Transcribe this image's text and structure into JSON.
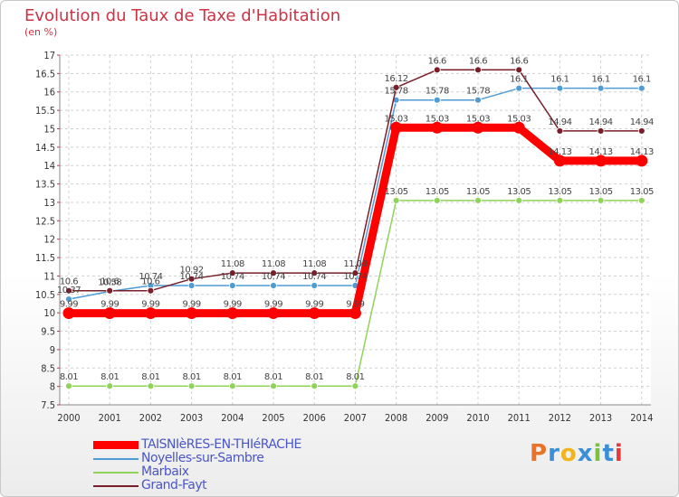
{
  "title": "Evolution du Taux de Taxe d'Habitation",
  "unit": "(en %)",
  "brand": {
    "text": "Proxiti",
    "colors": [
      "#e8742a",
      "#3a8fd8",
      "#f2b31c",
      "#3a8fd8",
      "#7ac143",
      "#3a8fd8",
      "#e23c3c"
    ]
  },
  "chart_data": {
    "type": "line",
    "title": "Evolution du Taux de Taxe d'Habitation",
    "ylabel": "(en %)",
    "xlabel": "",
    "ylim": [
      7.5,
      17
    ],
    "y_ticks": [
      "7.5",
      "8",
      "8.5",
      "9",
      "9.5",
      "10",
      "10.5",
      "11",
      "11.5",
      "12",
      "12.5",
      "13",
      "13.5",
      "14",
      "14.5",
      "15",
      "15.5",
      "16",
      "16.5",
      "17"
    ],
    "categories": [
      "2000",
      "2001",
      "2002",
      "2003",
      "2004",
      "2005",
      "2006",
      "2007",
      "2008",
      "2009",
      "2010",
      "2011",
      "2012",
      "2013",
      "2014"
    ],
    "legend_position": "bottom-left",
    "series": [
      {
        "name": "TAISNIèRES-EN-THIéRACHE",
        "color": "#ff0000",
        "bold": true,
        "values": [
          9.99,
          9.99,
          9.99,
          9.99,
          9.99,
          9.99,
          9.99,
          9.99,
          15.03,
          15.03,
          15.03,
          15.03,
          14.13,
          14.13,
          14.13
        ],
        "labels": [
          "9.99",
          "9.99",
          "9.99",
          "9.99",
          "9.99",
          "9.99",
          "9.99",
          "9.99",
          "15.03",
          "15.03",
          "15.03",
          "15.03",
          "14.13",
          "14.13",
          "14.13"
        ]
      },
      {
        "name": "Noyelles-sur-Sambre",
        "color": "#4f9bd4",
        "values": [
          10.37,
          10.58,
          10.74,
          10.74,
          10.74,
          10.74,
          10.74,
          10.74,
          15.78,
          15.78,
          15.78,
          16.1,
          16.1,
          16.1,
          16.1
        ],
        "labels": [
          "10.37",
          "10.58",
          "10.74",
          "10.74",
          "10.74",
          "10.74",
          "10.74",
          "10.74",
          "15.78",
          "15.78",
          "15.78",
          "16.1",
          "16.1",
          "16.1",
          "16.1"
        ]
      },
      {
        "name": "Marbaix",
        "color": "#8fd35a",
        "values": [
          8.01,
          8.01,
          8.01,
          8.01,
          8.01,
          8.01,
          8.01,
          8.01,
          13.05,
          13.05,
          13.05,
          13.05,
          13.05,
          13.05,
          13.05
        ],
        "labels": [
          "8.01",
          "8.01",
          "8.01",
          "8.01",
          "8.01",
          "8.01",
          "8.01",
          "8.01",
          "13.05",
          "13.05",
          "13.05",
          "13.05",
          "13.05",
          "13.05",
          "13.05"
        ]
      },
      {
        "name": "Grand-Fayt",
        "color": "#7a1f2a",
        "values": [
          10.6,
          10.6,
          10.6,
          10.92,
          11.08,
          11.08,
          11.08,
          11.08,
          16.12,
          16.6,
          16.6,
          16.6,
          14.94,
          14.94,
          14.94
        ],
        "labels": [
          "10.6",
          "10.6",
          "10.6",
          "10.92",
          "11.08",
          "11.08",
          "11.08",
          "11.08",
          "16.12",
          "16.6",
          "16.6",
          "16.6",
          "14.94",
          "14.94",
          "14.94"
        ]
      }
    ]
  }
}
